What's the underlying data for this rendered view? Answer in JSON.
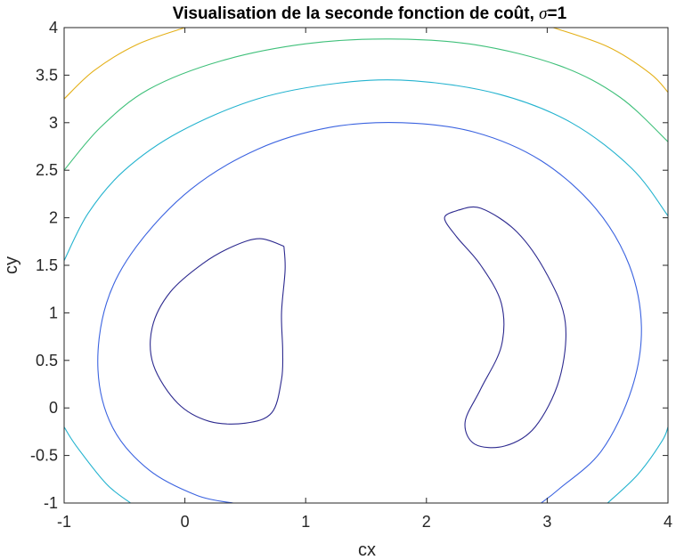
{
  "chart_data": {
    "type": "contour",
    "title_main": "Visualisation de la seconde fonction de coût, ",
    "title_symbol": "σ",
    "title_suffix": "=1",
    "xlabel": "cx",
    "ylabel": "cy",
    "xlim": [
      -1,
      4
    ],
    "ylim": [
      -1,
      4
    ],
    "xticks": [
      -1,
      0,
      1,
      2,
      3,
      4
    ],
    "yticks": [
      -1,
      -0.5,
      0,
      0.5,
      1,
      1.5,
      2,
      2.5,
      3,
      3.5,
      4
    ],
    "xtick_labels": [
      "-1",
      "0",
      "1",
      "2",
      "3",
      "4"
    ],
    "ytick_labels": [
      "-1",
      "-0.5",
      "0",
      "0.5",
      "1",
      "1.5",
      "2",
      "2.5",
      "3",
      "3.5",
      "4"
    ],
    "grid": false,
    "box": true,
    "contours": [
      {
        "level": 1,
        "color": "#2d2a8f",
        "paths": [
          [
            [
              0.82,
              1.7
            ],
            [
              0.62,
              1.78
            ],
            [
              0.4,
              1.7
            ],
            [
              0.15,
              1.52
            ],
            [
              -0.12,
              1.22
            ],
            [
              -0.27,
              0.85
            ],
            [
              -0.26,
              0.45
            ],
            [
              -0.06,
              0.05
            ],
            [
              0.2,
              -0.14
            ],
            [
              0.5,
              -0.16
            ],
            [
              0.72,
              -0.05
            ],
            [
              0.8,
              0.3
            ],
            [
              0.81,
              0.6
            ],
            [
              0.8,
              1.0
            ],
            [
              0.83,
              1.45
            ],
            [
              0.82,
              1.7
            ]
          ],
          [
            [
              2.26,
              2.08
            ],
            [
              2.15,
              2.0
            ],
            [
              2.25,
              1.8
            ],
            [
              2.45,
              1.5
            ],
            [
              2.62,
              1.1
            ],
            [
              2.62,
              0.65
            ],
            [
              2.45,
              0.2
            ],
            [
              2.32,
              -0.15
            ],
            [
              2.4,
              -0.38
            ],
            [
              2.65,
              -0.4
            ],
            [
              2.9,
              -0.2
            ],
            [
              3.1,
              0.3
            ],
            [
              3.15,
              0.9
            ],
            [
              3.0,
              1.4
            ],
            [
              2.75,
              1.85
            ],
            [
              2.45,
              2.1
            ],
            [
              2.26,
              2.08
            ]
          ]
        ]
      },
      {
        "level": 2,
        "color": "#3b63e0",
        "paths": [
          [
            [
              0.4,
              -1
            ],
            [
              0.1,
              -0.92
            ],
            [
              -0.3,
              -0.65
            ],
            [
              -0.6,
              -0.2
            ],
            [
              -0.72,
              0.4
            ],
            [
              -0.65,
              1.1
            ],
            [
              -0.4,
              1.7
            ],
            [
              0.05,
              2.3
            ],
            [
              0.6,
              2.72
            ],
            [
              1.2,
              2.95
            ],
            [
              1.8,
              3.0
            ],
            [
              2.4,
              2.9
            ],
            [
              2.95,
              2.6
            ],
            [
              3.4,
              2.1
            ],
            [
              3.68,
              1.5
            ],
            [
              3.78,
              0.85
            ],
            [
              3.7,
              0.2
            ],
            [
              3.45,
              -0.45
            ],
            [
              3.1,
              -0.85
            ],
            [
              2.95,
              -1
            ]
          ]
        ]
      },
      {
        "level": 3,
        "color": "#24b3cf",
        "paths": [
          [
            [
              -1,
              1.55
            ],
            [
              -0.8,
              2.05
            ],
            [
              -0.5,
              2.5
            ],
            [
              -0.05,
              2.9
            ],
            [
              0.6,
              3.25
            ],
            [
              1.3,
              3.42
            ],
            [
              1.9,
              3.44
            ],
            [
              2.6,
              3.3
            ],
            [
              3.2,
              3.0
            ],
            [
              3.7,
              2.52
            ],
            [
              4,
              2.02
            ]
          ],
          [
            [
              -0.45,
              -1
            ],
            [
              -0.65,
              -0.8
            ],
            [
              -0.9,
              -0.4
            ],
            [
              -1,
              -0.2
            ]
          ],
          [
            [
              3.5,
              -1
            ],
            [
              3.75,
              -0.7
            ],
            [
              3.95,
              -0.35
            ],
            [
              4,
              -0.2
            ]
          ]
        ]
      },
      {
        "level": 4,
        "color": "#3fc07a",
        "paths": [
          [
            [
              -1,
              2.5
            ],
            [
              -0.7,
              2.95
            ],
            [
              -0.3,
              3.35
            ],
            [
              0.3,
              3.65
            ],
            [
              1.0,
              3.83
            ],
            [
              1.7,
              3.88
            ],
            [
              2.4,
              3.82
            ],
            [
              3.1,
              3.6
            ],
            [
              3.6,
              3.27
            ],
            [
              4,
              2.8
            ]
          ]
        ]
      },
      {
        "level": 5,
        "color": "#e4b018",
        "paths": [
          [
            [
              -1,
              3.25
            ],
            [
              -0.75,
              3.55
            ],
            [
              -0.4,
              3.82
            ],
            [
              0.0,
              4.0
            ]
          ],
          [
            [
              3.05,
              4.0
            ],
            [
              3.5,
              3.8
            ],
            [
              3.85,
              3.52
            ],
            [
              4,
              3.32
            ]
          ]
        ]
      }
    ]
  }
}
